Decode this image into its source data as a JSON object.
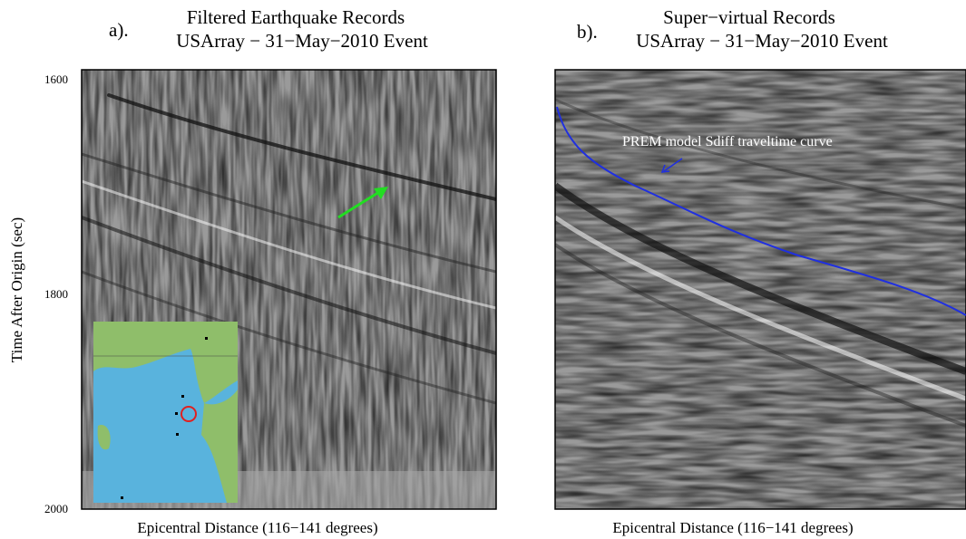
{
  "y_axis": {
    "label": "Time After Origin (sec)",
    "ticks": [
      1600,
      1800,
      2000
    ]
  },
  "panels": [
    {
      "tag": "a).",
      "title": "Filtered Earthquake Records",
      "subtitle": "USArray − 31−May−2010 Event",
      "x_label": "Epicentral Distance (116−141 degrees)"
    },
    {
      "tag": "b).",
      "title": "Super−virtual Records",
      "subtitle": "USArray − 31−May−2010 Event",
      "x_label": "Epicentral Distance (116−141 degrees)",
      "annotation": "PREM model Sdiff traveltime curve"
    }
  ]
}
